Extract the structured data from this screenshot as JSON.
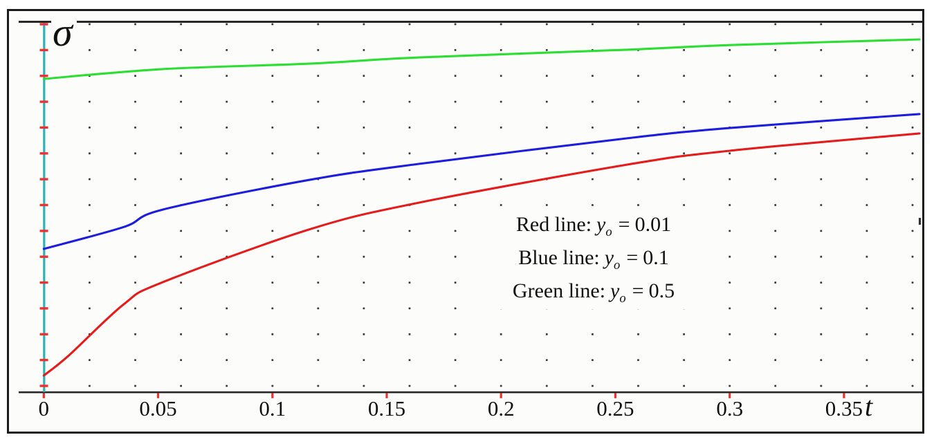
{
  "figure": {
    "y_axis_symbol": "σ",
    "x_axis_symbol": "t"
  },
  "x_axis": {
    "tick_labels": [
      "0",
      "0.05",
      "0.1",
      "0.15",
      "0.2",
      "0.25",
      "0.3",
      "0.35"
    ]
  },
  "legend": {
    "lines": [
      {
        "label": "Red line:",
        "symbol": "y",
        "subscript": "o",
        "equals": "=",
        "value": "0.01"
      },
      {
        "label": "Blue line:",
        "symbol": "y",
        "subscript": "o",
        "equals": "=",
        "value": "0.1"
      },
      {
        "label": "Green line:",
        "symbol": "y",
        "subscript": "o",
        "equals": "=",
        "value": "0.5"
      }
    ]
  },
  "colors": {
    "red_line": "#e41c1c",
    "blue_line": "#1d1dde",
    "green_line": "#2bdf32",
    "y_axis": "#2fb2b6",
    "tick_marks": "#f03030",
    "axis_lines": "#282828",
    "grid_dots": "#3a3a3a",
    "frame": "#1b1b1b",
    "text": "#101010",
    "right_mark": "#333333"
  },
  "chart_data": {
    "type": "line",
    "title": "",
    "xlabel": "t",
    "ylabel": "σ",
    "x_ticks": [
      0,
      0.05,
      0.1,
      0.15,
      0.2,
      0.25,
      0.3,
      0.35
    ],
    "xlim": [
      0,
      0.385
    ],
    "ylim_divisions": [
      0,
      14.35
    ],
    "y_axis_unlabeled": true,
    "y_units": "grid divisions above the t-axis (y-axis ticks carry no numeric labels)",
    "grid": {
      "style": "dotted",
      "x_dot_spacing": 0.02,
      "y_dot_spacing_divisions": 1
    },
    "legend_note": "Red line: y_o = 0.01; Blue line: y_o = 0.1; Green line: y_o = 0.5",
    "legend_position": "center-right of plot",
    "series": [
      {
        "name": "Red line",
        "y_o": 0.01,
        "color_key": "red_line",
        "points": [
          [
            0,
            0.67
          ],
          [
            0.011,
            1.45
          ],
          [
            0.035,
            3.43
          ],
          [
            0.052,
            4.28
          ],
          [
            0.116,
            6.32
          ],
          [
            0.164,
            7.36
          ],
          [
            0.255,
            8.83
          ],
          [
            0.3,
            9.37
          ],
          [
            0.383,
            10.04
          ]
        ]
      },
      {
        "name": "Blue line",
        "y_o": 0.1,
        "color_key": "blue_line",
        "points": [
          [
            0,
            5.57
          ],
          [
            0.035,
            6.42
          ],
          [
            0.052,
            7.09
          ],
          [
            0.116,
            8.24
          ],
          [
            0.164,
            8.86
          ],
          [
            0.255,
            9.85
          ],
          [
            0.3,
            10.25
          ],
          [
            0.383,
            10.79
          ]
        ]
      },
      {
        "name": "Green line",
        "y_o": 0.5,
        "color_key": "green_line",
        "points": [
          [
            0,
            12.15
          ],
          [
            0.052,
            12.53
          ],
          [
            0.116,
            12.74
          ],
          [
            0.164,
            12.98
          ],
          [
            0.255,
            13.28
          ],
          [
            0.3,
            13.46
          ],
          [
            0.383,
            13.68
          ]
        ]
      }
    ]
  }
}
